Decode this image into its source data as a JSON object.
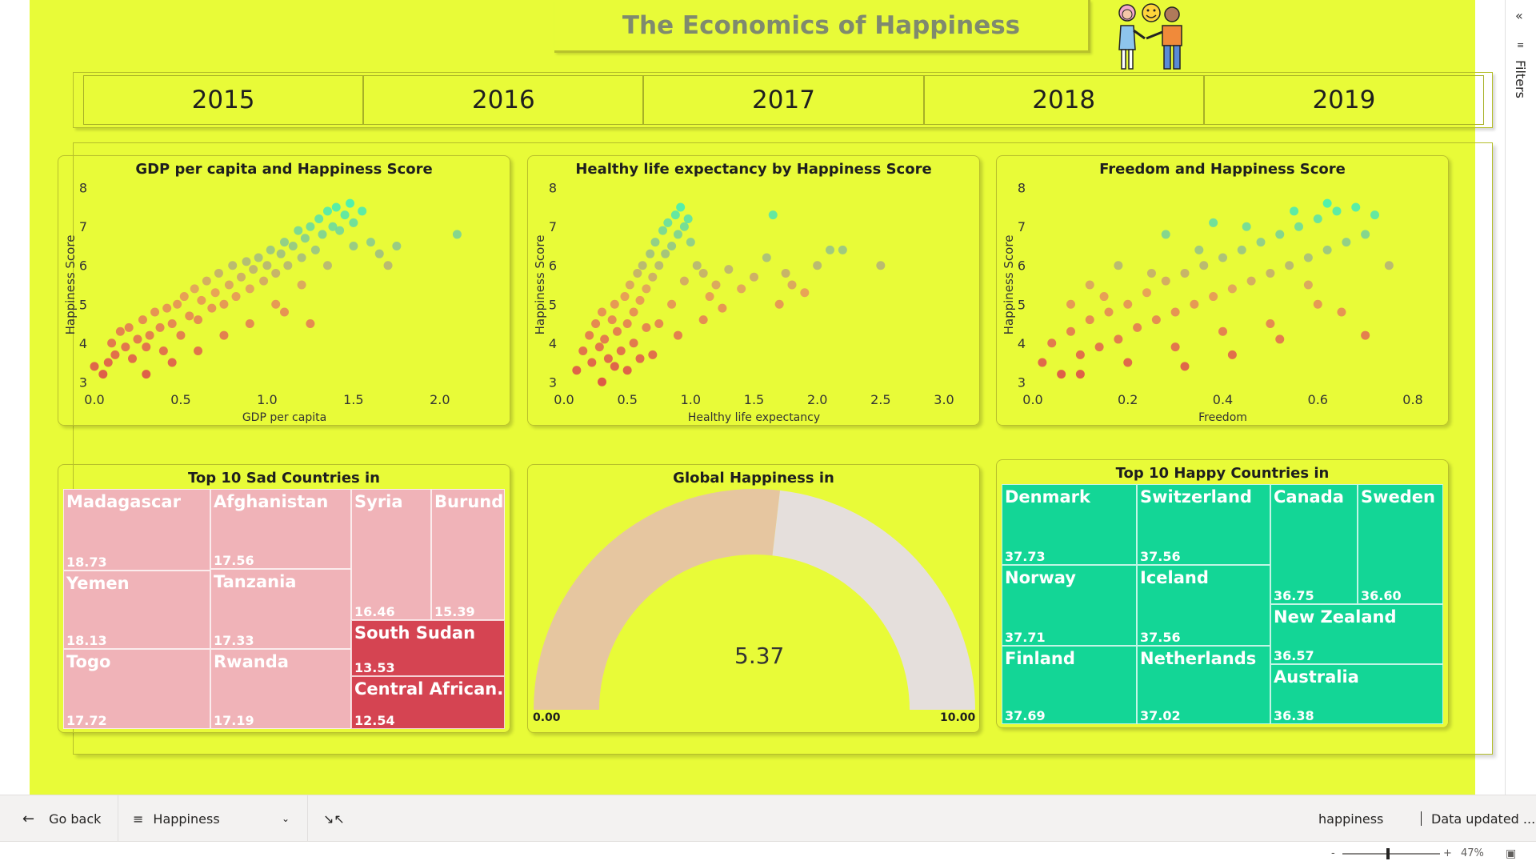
{
  "report": {
    "title": "The Economics of Happiness",
    "years": [
      "2015",
      "2016",
      "2017",
      "2018",
      "2019"
    ]
  },
  "charts": {
    "gdp": {
      "title": "GDP per capita and Happiness Score"
    },
    "life": {
      "title": "Healthy life expectancy by Happiness Score"
    },
    "freedom": {
      "title": "Freedom and Happiness Score"
    },
    "sad": {
      "title": "Top 10 Sad Countries in"
    },
    "gauge": {
      "title": "Global Happiness in",
      "value": "5.37",
      "min_label": "0.00",
      "max_label": "10.00"
    },
    "happy": {
      "title": "Top 10 Happy Countries in"
    }
  },
  "colors": {
    "background": "#e8fb38",
    "happy": "#13d696",
    "sad_light": "#f0b3b8",
    "sad_dark": "#d54452",
    "gauge_fill": "#e6c6a0",
    "gauge_rest": "#e5dfdc",
    "point_high": "#40f0b8",
    "point_low": "#dc4848"
  },
  "chart_data": [
    {
      "type": "scatter",
      "title": "GDP per capita and Happiness Score",
      "xlabel": "GDP per capita",
      "ylabel": "Happiness Score",
      "xlim": [
        0.0,
        2.2
      ],
      "ylim": [
        2.8,
        8.2
      ],
      "xticks": [
        "0.0",
        "0.5",
        "1.0",
        "1.5",
        "2.0"
      ],
      "yticks": [
        "3",
        "4",
        "5",
        "6",
        "7",
        "8"
      ],
      "points": [
        [
          0.0,
          3.4
        ],
        [
          0.05,
          3.2
        ],
        [
          0.08,
          3.5
        ],
        [
          0.1,
          4.0
        ],
        [
          0.12,
          3.7
        ],
        [
          0.15,
          4.3
        ],
        [
          0.18,
          3.9
        ],
        [
          0.2,
          4.4
        ],
        [
          0.22,
          3.6
        ],
        [
          0.25,
          4.1
        ],
        [
          0.28,
          4.6
        ],
        [
          0.3,
          3.9
        ],
        [
          0.32,
          4.2
        ],
        [
          0.35,
          4.8
        ],
        [
          0.38,
          4.4
        ],
        [
          0.4,
          3.8
        ],
        [
          0.42,
          4.9
        ],
        [
          0.45,
          4.5
        ],
        [
          0.48,
          5.0
        ],
        [
          0.5,
          4.2
        ],
        [
          0.52,
          5.2
        ],
        [
          0.55,
          4.7
        ],
        [
          0.58,
          5.4
        ],
        [
          0.6,
          4.6
        ],
        [
          0.62,
          5.1
        ],
        [
          0.65,
          5.6
        ],
        [
          0.68,
          4.9
        ],
        [
          0.7,
          5.3
        ],
        [
          0.72,
          5.8
        ],
        [
          0.75,
          5.0
        ],
        [
          0.78,
          5.5
        ],
        [
          0.8,
          6.0
        ],
        [
          0.82,
          5.2
        ],
        [
          0.85,
          5.7
        ],
        [
          0.88,
          6.1
        ],
        [
          0.9,
          5.4
        ],
        [
          0.92,
          5.9
        ],
        [
          0.95,
          6.2
        ],
        [
          0.98,
          5.6
        ],
        [
          1.0,
          6.0
        ],
        [
          1.02,
          6.4
        ],
        [
          1.05,
          5.8
        ],
        [
          1.08,
          6.3
        ],
        [
          1.1,
          6.6
        ],
        [
          1.12,
          6.0
        ],
        [
          1.15,
          6.5
        ],
        [
          1.18,
          6.9
        ],
        [
          1.2,
          6.2
        ],
        [
          1.22,
          6.7
        ],
        [
          1.25,
          7.0
        ],
        [
          1.28,
          6.4
        ],
        [
          1.3,
          7.2
        ],
        [
          1.32,
          6.8
        ],
        [
          1.35,
          7.4
        ],
        [
          1.38,
          7.0
        ],
        [
          1.4,
          7.5
        ],
        [
          1.42,
          6.9
        ],
        [
          1.45,
          7.3
        ],
        [
          1.48,
          7.6
        ],
        [
          1.5,
          7.1
        ],
        [
          1.55,
          7.4
        ],
        [
          1.6,
          6.6
        ],
        [
          1.65,
          6.3
        ],
        [
          1.7,
          6.0
        ],
        [
          1.75,
          6.5
        ],
        [
          2.1,
          6.8
        ],
        [
          0.3,
          3.2
        ],
        [
          0.45,
          3.5
        ],
        [
          0.6,
          3.8
        ],
        [
          0.75,
          4.2
        ],
        [
          0.9,
          4.5
        ],
        [
          1.05,
          5.0
        ],
        [
          1.2,
          5.5
        ],
        [
          1.35,
          6.0
        ],
        [
          1.5,
          6.5
        ],
        [
          1.25,
          4.5
        ],
        [
          1.1,
          4.8
        ]
      ]
    },
    {
      "type": "scatter",
      "title": "Healthy life expectancy by Happiness Score",
      "xlabel": "Healthy life expectancy",
      "ylabel": "Happiness Score",
      "xlim": [
        0.0,
        3.0
      ],
      "ylim": [
        2.8,
        8.2
      ],
      "xticks": [
        "0.0",
        "0.5",
        "1.0",
        "1.5",
        "2.0",
        "2.5",
        "3.0"
      ],
      "yticks": [
        "3",
        "4",
        "5",
        "6",
        "7",
        "8"
      ],
      "points": [
        [
          0.1,
          3.3
        ],
        [
          0.15,
          3.8
        ],
        [
          0.2,
          4.2
        ],
        [
          0.22,
          3.5
        ],
        [
          0.25,
          4.5
        ],
        [
          0.28,
          3.9
        ],
        [
          0.3,
          4.8
        ],
        [
          0.32,
          4.1
        ],
        [
          0.35,
          3.6
        ],
        [
          0.38,
          4.6
        ],
        [
          0.4,
          5.0
        ],
        [
          0.42,
          4.3
        ],
        [
          0.45,
          3.8
        ],
        [
          0.48,
          5.2
        ],
        [
          0.5,
          4.5
        ],
        [
          0.52,
          5.5
        ],
        [
          0.55,
          4.8
        ],
        [
          0.58,
          5.8
        ],
        [
          0.6,
          5.1
        ],
        [
          0.62,
          6.0
        ],
        [
          0.65,
          5.4
        ],
        [
          0.68,
          6.3
        ],
        [
          0.7,
          5.7
        ],
        [
          0.72,
          6.6
        ],
        [
          0.75,
          6.0
        ],
        [
          0.78,
          6.9
        ],
        [
          0.8,
          6.3
        ],
        [
          0.82,
          7.1
        ],
        [
          0.85,
          6.5
        ],
        [
          0.88,
          7.3
        ],
        [
          0.9,
          6.8
        ],
        [
          0.92,
          7.5
        ],
        [
          0.95,
          7.0
        ],
        [
          0.98,
          7.2
        ],
        [
          1.0,
          6.6
        ],
        [
          1.05,
          6.0
        ],
        [
          1.1,
          5.8
        ],
        [
          1.15,
          5.2
        ],
        [
          1.2,
          5.5
        ],
        [
          1.3,
          5.9
        ],
        [
          1.4,
          5.4
        ],
        [
          1.5,
          5.7
        ],
        [
          1.6,
          6.2
        ],
        [
          1.65,
          7.3
        ],
        [
          1.7,
          5.0
        ],
        [
          1.8,
          5.5
        ],
        [
          1.9,
          5.3
        ],
        [
          2.0,
          6.0
        ],
        [
          2.1,
          6.4
        ],
        [
          2.2,
          6.4
        ],
        [
          2.5,
          6.0
        ],
        [
          0.3,
          3.0
        ],
        [
          0.5,
          3.3
        ],
        [
          0.7,
          3.7
        ],
        [
          0.9,
          4.2
        ],
        [
          1.1,
          4.6
        ],
        [
          1.25,
          4.9
        ],
        [
          0.55,
          4.0
        ],
        [
          0.65,
          4.4
        ],
        [
          0.85,
          5.0
        ],
        [
          0.95,
          5.6
        ],
        [
          0.4,
          3.4
        ],
        [
          0.6,
          3.6
        ],
        [
          1.75,
          5.8
        ],
        [
          0.75,
          4.5
        ]
      ]
    },
    {
      "type": "scatter",
      "title": "Freedom and Happiness Score",
      "xlabel": "Freedom",
      "ylabel": "Happiness Score",
      "xlim": [
        0.0,
        0.8
      ],
      "ylim": [
        2.8,
        8.2
      ],
      "xticks": [
        "0.0",
        "0.2",
        "0.4",
        "0.6",
        "0.8"
      ],
      "yticks": [
        "3",
        "4",
        "5",
        "6",
        "7",
        "8"
      ],
      "points": [
        [
          0.02,
          3.5
        ],
        [
          0.04,
          4.0
        ],
        [
          0.06,
          3.2
        ],
        [
          0.08,
          4.3
        ],
        [
          0.1,
          3.7
        ],
        [
          0.12,
          4.6
        ],
        [
          0.14,
          3.9
        ],
        [
          0.16,
          4.8
        ],
        [
          0.18,
          4.1
        ],
        [
          0.2,
          5.0
        ],
        [
          0.22,
          4.4
        ],
        [
          0.24,
          5.3
        ],
        [
          0.26,
          4.6
        ],
        [
          0.28,
          5.6
        ],
        [
          0.3,
          4.8
        ],
        [
          0.32,
          5.8
        ],
        [
          0.34,
          5.0
        ],
        [
          0.36,
          6.0
        ],
        [
          0.38,
          5.2
        ],
        [
          0.4,
          6.2
        ],
        [
          0.42,
          5.4
        ],
        [
          0.44,
          6.4
        ],
        [
          0.46,
          5.6
        ],
        [
          0.48,
          6.6
        ],
        [
          0.5,
          5.8
        ],
        [
          0.52,
          6.8
        ],
        [
          0.54,
          6.0
        ],
        [
          0.56,
          7.0
        ],
        [
          0.58,
          6.2
        ],
        [
          0.6,
          7.2
        ],
        [
          0.62,
          6.4
        ],
        [
          0.64,
          7.4
        ],
        [
          0.66,
          6.6
        ],
        [
          0.68,
          7.5
        ],
        [
          0.7,
          6.8
        ],
        [
          0.72,
          7.3
        ],
        [
          0.75,
          6.0
        ],
        [
          0.1,
          3.2
        ],
        [
          0.2,
          3.5
        ],
        [
          0.3,
          3.9
        ],
        [
          0.4,
          4.3
        ],
        [
          0.5,
          4.5
        ],
        [
          0.6,
          5.0
        ],
        [
          0.15,
          5.2
        ],
        [
          0.25,
          5.8
        ],
        [
          0.35,
          6.4
        ],
        [
          0.45,
          7.0
        ],
        [
          0.55,
          7.4
        ],
        [
          0.62,
          7.6
        ],
        [
          0.65,
          4.8
        ],
        [
          0.7,
          4.2
        ],
        [
          0.32,
          3.4
        ],
        [
          0.42,
          3.7
        ],
        [
          0.52,
          4.1
        ],
        [
          0.58,
          5.5
        ],
        [
          0.08,
          5.0
        ],
        [
          0.12,
          5.5
        ],
        [
          0.18,
          6.0
        ],
        [
          0.28,
          6.8
        ],
        [
          0.38,
          7.1
        ]
      ]
    },
    {
      "type": "treemap",
      "title": "Top 10 Sad Countries in",
      "categories": [
        "Madagascar",
        "Afghanistan",
        "Syria",
        "Burundi",
        "Yemen",
        "Tanzania",
        "Togo",
        "Rwanda",
        "South Sudan",
        "Central African..."
      ],
      "values": [
        18.73,
        17.56,
        16.46,
        15.39,
        18.13,
        17.33,
        17.72,
        17.19,
        13.53,
        12.54
      ],
      "labels": [
        "18.73",
        "17.56",
        "16.46",
        "15.39",
        "18.13",
        "17.33",
        "17.72",
        "17.19",
        "13.53",
        "12.54"
      ]
    },
    {
      "type": "gauge",
      "title": "Global Happiness in",
      "value": 5.37,
      "min": 0.0,
      "max": 10.0
    },
    {
      "type": "treemap",
      "title": "Top 10 Happy Countries in",
      "categories": [
        "Denmark",
        "Switzerland",
        "Canada",
        "Sweden",
        "Norway",
        "Iceland",
        "New Zealand",
        "Finland",
        "Netherlands",
        "Australia"
      ],
      "values": [
        37.73,
        37.56,
        36.75,
        36.6,
        37.71,
        37.56,
        36.57,
        37.69,
        37.02,
        36.38
      ],
      "labels": [
        "37.73",
        "37.56",
        "36.75",
        "36.60",
        "37.71",
        "37.56",
        "36.57",
        "37.69",
        "37.02",
        "36.38"
      ]
    }
  ],
  "right_pane": {
    "collapse_icon": "chevron-double-right-icon",
    "filter_icon": "filter-icon",
    "label": "Filters"
  },
  "bottom_bar": {
    "go_back": "Go back",
    "page_select": "Happiness",
    "report_name": "happiness",
    "data_updated": "Data updated ..."
  },
  "status_bar": {
    "zoom_minus": "-",
    "zoom_plus": "+",
    "zoom": "47%",
    "zoom_fraction": 0.47
  }
}
